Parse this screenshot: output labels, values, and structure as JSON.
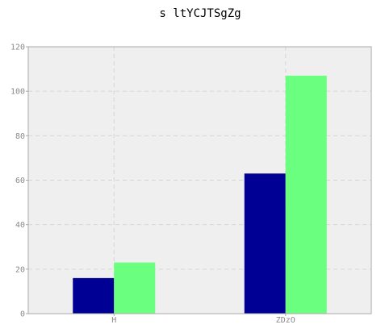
{
  "chart_data": {
    "type": "bar",
    "title": "s ltYCJTSgZg",
    "xlabel": "",
    "ylabel": "",
    "categories": [
      "H",
      "ZDzO"
    ],
    "series": [
      {
        "values": [
          16,
          63
        ],
        "color": "#000094"
      },
      {
        "values": [
          23,
          107
        ],
        "color": "#6bff7f"
      }
    ],
    "ylim": [
      0,
      120
    ],
    "yticks": [
      0,
      20,
      40,
      60,
      80,
      100,
      120
    ],
    "grid": true,
    "background_color": "#efefef"
  }
}
